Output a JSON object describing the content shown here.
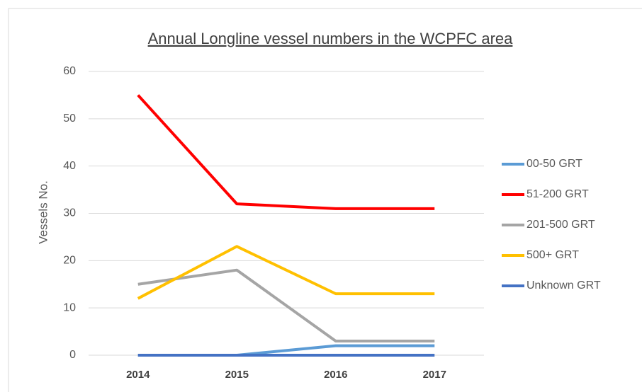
{
  "chart_data": {
    "type": "line",
    "title": "Annual  Longline vessel numbers in the WCPFC area",
    "y_label": "Vessels No.",
    "categories": [
      "2014",
      "2015",
      "2016",
      "2017"
    ],
    "series": [
      {
        "name": "00-50 GRT",
        "color": "#5b9bd5",
        "values": [
          0,
          0,
          2,
          2
        ]
      },
      {
        "name": "51-200 GRT",
        "color": "#ff0000",
        "values": [
          55,
          32,
          31,
          31
        ]
      },
      {
        "name": "201-500 GRT",
        "color": "#a5a5a5",
        "values": [
          15,
          18,
          3,
          3
        ]
      },
      {
        "name": "500+ GRT",
        "color": "#ffc000",
        "values": [
          12,
          23,
          13,
          13
        ]
      },
      {
        "name": "Unknown GRT",
        "color": "#4472c4",
        "values": [
          0,
          0,
          0,
          0
        ]
      }
    ],
    "ylim": [
      0,
      60
    ],
    "yticks": [
      0,
      10,
      20,
      30,
      40,
      50,
      60
    ],
    "grid": true,
    "legend": "right"
  }
}
